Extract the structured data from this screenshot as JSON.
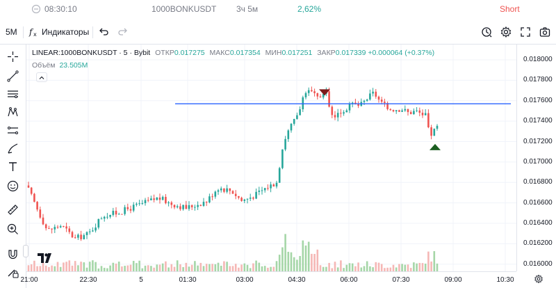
{
  "info_bar": {
    "time": "08:30:10",
    "symbol": "1000BONKUSDT",
    "duration": "3ч 5м",
    "percent": "2,62%",
    "side": "Short"
  },
  "toolbar": {
    "interval": "5M",
    "indicators_label": "Индикаторы"
  },
  "legend": {
    "symbol_line": "LINEAR:1000BONKUSDT · 5 · Bybit",
    "open_label": "ОТКР",
    "open": "0.017275",
    "high_label": "МАКС",
    "high": "0.017354",
    "low_label": "МИН",
    "low": "0.017251",
    "close_label": "ЗАКР",
    "close": "0.017339",
    "change": "+0.000064 (+0.37%)",
    "volume_label": "Объём",
    "volume": "23.505M"
  },
  "price_axis": [
    "0.018000",
    "0.017800",
    "0.017600",
    "0.017400",
    "0.017200",
    "0.017000",
    "0.016800",
    "0.016600",
    "0.016400",
    "0.016200",
    "0.016000"
  ],
  "time_axis": [
    "21:00",
    "22:30",
    "5",
    "01:30",
    "03:00",
    "04:30",
    "06:00",
    "07:30",
    "09:00",
    "10:30"
  ],
  "colors": {
    "up": "#26a69a",
    "down": "#ef5350",
    "up_volume": "#a5d6a7",
    "down_volume": "#f5b7b5",
    "horizontal_line": "#2962ff",
    "entry_marker": "#7b1a1a",
    "exit_marker": "#1b5e20",
    "positive_text": "#26a69a",
    "short_text": "#ef5350"
  },
  "chart_data": {
    "type": "candlestick",
    "y_range": [
      0.01593,
      0.01815
    ],
    "horizontal_line": 0.01757,
    "candles_summary": [
      {
        "time": "21:00",
        "close": 0.01675
      },
      {
        "time": "22:30",
        "close": 0.0163
      },
      {
        "time": "01:30",
        "close": 0.01655
      },
      {
        "time": "03:00",
        "close": 0.01662
      },
      {
        "time": "04:30",
        "close": 0.01765
      },
      {
        "time": "06:00",
        "close": 0.01755
      },
      {
        "time": "07:30",
        "close": 0.01748
      },
      {
        "time": "08:30",
        "close": 0.017339
      }
    ]
  }
}
